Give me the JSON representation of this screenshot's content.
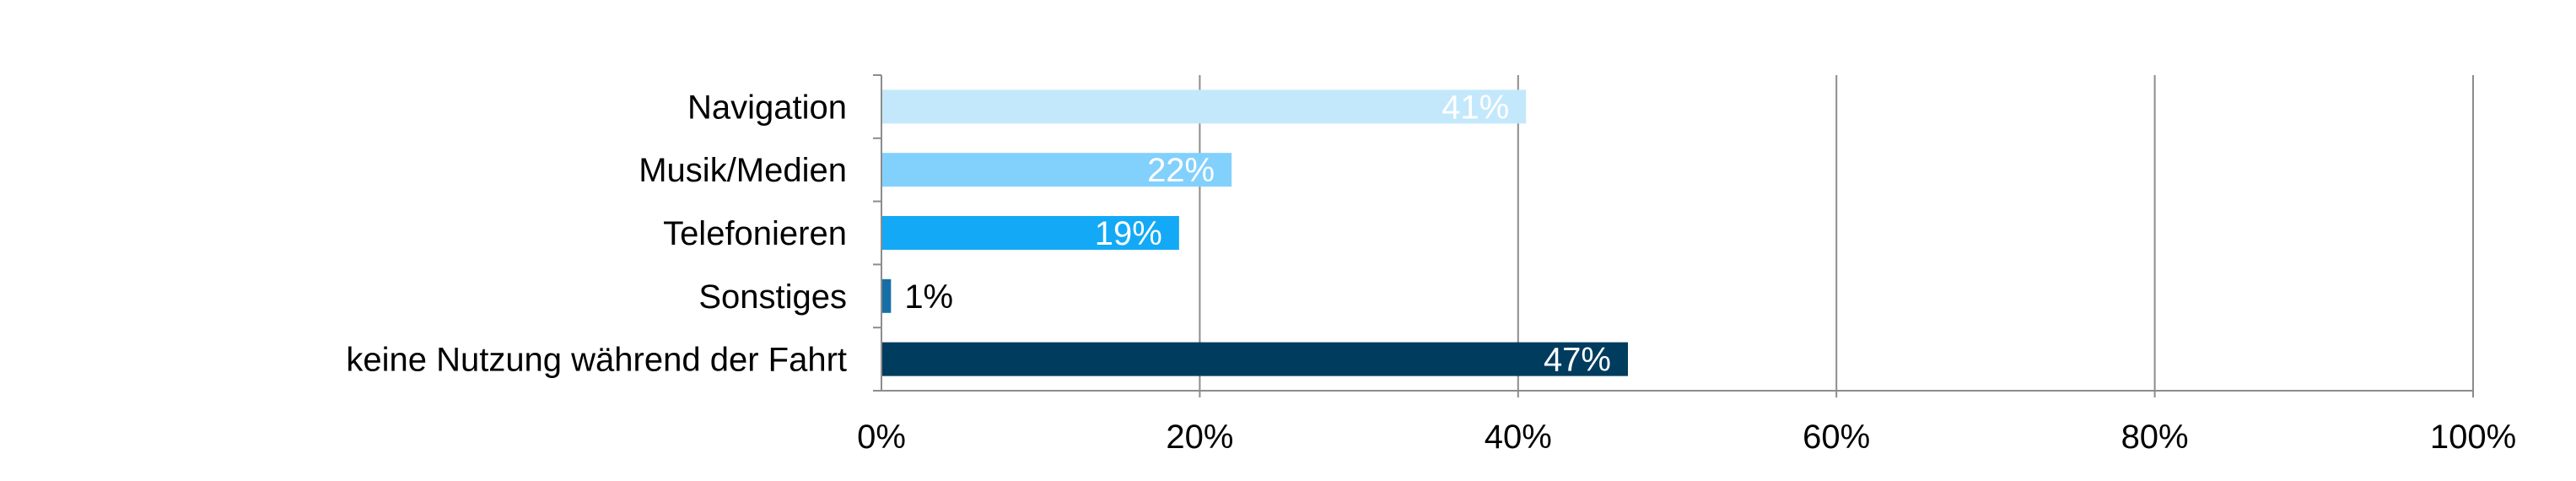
{
  "chart_data": {
    "type": "bar",
    "orientation": "horizontal",
    "categories": [
      "Navigation",
      "Musik/Medien",
      "Telefonieren",
      "Sonstiges",
      "keine Nutzung während der Fahrt"
    ],
    "values": [
      40.5,
      22,
      18.7,
      0.6,
      46.9
    ],
    "data_labels": [
      "41%",
      "22%",
      "19%",
      "1%",
      "47%"
    ],
    "colors": [
      "#c4e8fb",
      "#82d1fc",
      "#13a9f6",
      "#166ea6",
      "#003c5e"
    ],
    "label_colors": [
      "#ffffff",
      "#ffffff",
      "#ffffff",
      "#000000",
      "#ffffff"
    ],
    "xlim": [
      0,
      100
    ],
    "x_ticks": [
      0,
      20,
      40,
      60,
      80,
      100
    ],
    "x_tick_labels": [
      "0%",
      "20%",
      "40%",
      "60%",
      "80%",
      "100%"
    ],
    "grid": "vertical",
    "legend": "none",
    "title": "",
    "xlabel": "",
    "ylabel": ""
  }
}
